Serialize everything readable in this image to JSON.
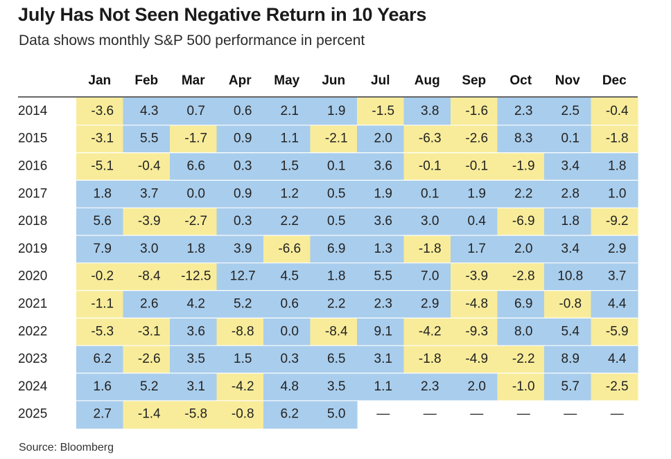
{
  "header": {
    "title": "July Has Not Seen Negative Return in 10 Years",
    "subtitle": "Data shows monthly S&P 500 performance in percent"
  },
  "footer": {
    "source": "Source: Bloomberg"
  },
  "colors": {
    "positive": "#a9cdec",
    "negative": "#f8ec9a",
    "rule": "#333333",
    "row_divider": "#ffffff"
  },
  "chart_data": {
    "type": "heatmap",
    "title": "July Has Not Seen Negative Return in 10 Years",
    "subtitle": "Data shows monthly S&P 500 performance in percent",
    "columns": [
      "Jan",
      "Feb",
      "Mar",
      "Apr",
      "May",
      "Jun",
      "Jul",
      "Aug",
      "Sep",
      "Oct",
      "Nov",
      "Dec"
    ],
    "missing_placeholder": "—",
    "rows": [
      {
        "year": "2014",
        "values": [
          "-3.6",
          "4.3",
          "0.7",
          "0.6",
          "2.1",
          "1.9",
          "-1.5",
          "3.8",
          "-1.6",
          "2.3",
          "2.5",
          "-0.4"
        ]
      },
      {
        "year": "2015",
        "values": [
          "-3.1",
          "5.5",
          "-1.7",
          "0.9",
          "1.1",
          "-2.1",
          "2.0",
          "-6.3",
          "-2.6",
          "8.3",
          "0.1",
          "-1.8"
        ]
      },
      {
        "year": "2016",
        "values": [
          "-5.1",
          "-0.4",
          "6.6",
          "0.3",
          "1.5",
          "0.1",
          "3.6",
          "-0.1",
          "-0.1",
          "-1.9",
          "3.4",
          "1.8"
        ]
      },
      {
        "year": "2017",
        "values": [
          "1.8",
          "3.7",
          "0.0",
          "0.9",
          "1.2",
          "0.5",
          "1.9",
          "0.1",
          "1.9",
          "2.2",
          "2.8",
          "1.0"
        ]
      },
      {
        "year": "2018",
        "values": [
          "5.6",
          "-3.9",
          "-2.7",
          "0.3",
          "2.2",
          "0.5",
          "3.6",
          "3.0",
          "0.4",
          "-6.9",
          "1.8",
          "-9.2"
        ]
      },
      {
        "year": "2019",
        "values": [
          "7.9",
          "3.0",
          "1.8",
          "3.9",
          "-6.6",
          "6.9",
          "1.3",
          "-1.8",
          "1.7",
          "2.0",
          "3.4",
          "2.9"
        ]
      },
      {
        "year": "2020",
        "values": [
          "-0.2",
          "-8.4",
          "-12.5",
          "12.7",
          "4.5",
          "1.8",
          "5.5",
          "7.0",
          "-3.9",
          "-2.8",
          "10.8",
          "3.7"
        ]
      },
      {
        "year": "2021",
        "values": [
          "-1.1",
          "2.6",
          "4.2",
          "5.2",
          "0.6",
          "2.2",
          "2.3",
          "2.9",
          "-4.8",
          "6.9",
          "-0.8",
          "4.4"
        ]
      },
      {
        "year": "2022",
        "values": [
          "-5.3",
          "-3.1",
          "3.6",
          "-8.8",
          "0.0",
          "-8.4",
          "9.1",
          "-4.2",
          "-9.3",
          "8.0",
          "5.4",
          "-5.9"
        ]
      },
      {
        "year": "2023",
        "values": [
          "6.2",
          "-2.6",
          "3.5",
          "1.5",
          "0.3",
          "6.5",
          "3.1",
          "-1.8",
          "-4.9",
          "-2.2",
          "8.9",
          "4.4"
        ]
      },
      {
        "year": "2024",
        "values": [
          "1.6",
          "5.2",
          "3.1",
          "-4.2",
          "4.8",
          "3.5",
          "1.1",
          "2.3",
          "2.0",
          "-1.0",
          "5.7",
          "-2.5"
        ]
      },
      {
        "year": "2025",
        "values": [
          "2.7",
          "-1.4",
          "-5.8",
          "-0.8",
          "6.2",
          "5.0",
          null,
          null,
          null,
          null,
          null,
          null
        ]
      }
    ]
  }
}
